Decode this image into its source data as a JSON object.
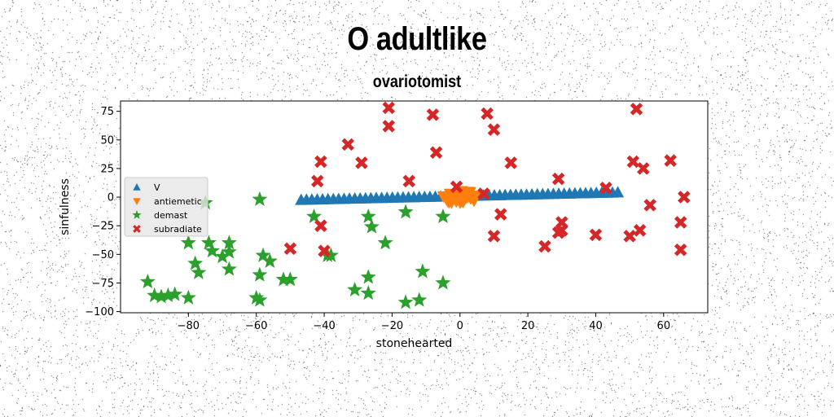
{
  "chart_data": {
    "type": "scatter",
    "title": "O adultlike",
    "subtitle": "ovariotomist",
    "xlabel": "stonehearted",
    "ylabel": "sinfulness",
    "xlim": [
      -100,
      73
    ],
    "ylim": [
      -101,
      84
    ],
    "xticks": [
      -80,
      -60,
      -40,
      -20,
      0,
      20,
      40,
      60
    ],
    "yticks": [
      -100,
      -75,
      -50,
      -25,
      0,
      25,
      50,
      75
    ],
    "grid": false,
    "legend_position": "center-left",
    "series": [
      {
        "name": "V",
        "color": "#1f77b4",
        "marker": "triangle-up",
        "points": "line",
        "x_start": -46.8,
        "y_start": -2.5,
        "x_end": 46.5,
        "y_end": 4.0,
        "count": 60
      },
      {
        "name": "antiemetic",
        "color": "#ff7f0e",
        "marker": "triangle-down",
        "points": "cluster",
        "center": [
          0,
          0
        ],
        "spread": [
          5,
          6
        ],
        "count": 40
      },
      {
        "name": "demast",
        "color": "#2ca02c",
        "marker": "star",
        "points": [
          [
            -92,
            -74
          ],
          [
            -90,
            -86
          ],
          [
            -88,
            -87
          ],
          [
            -86,
            -86
          ],
          [
            -84,
            -85
          ],
          [
            -80,
            -88
          ],
          [
            -80,
            -40
          ],
          [
            -78,
            -58
          ],
          [
            -77,
            -66
          ],
          [
            -74,
            -40
          ],
          [
            -73,
            -47
          ],
          [
            -70,
            -52
          ],
          [
            -68,
            -48
          ],
          [
            -68,
            -40
          ],
          [
            -68,
            -63
          ],
          [
            -75,
            -5
          ],
          [
            -59,
            -2
          ],
          [
            -60,
            -88
          ],
          [
            -59,
            -90
          ],
          [
            -58,
            -51
          ],
          [
            -59,
            -68
          ],
          [
            -56,
            -56
          ],
          [
            -52,
            -72
          ],
          [
            -50,
            -72
          ],
          [
            -43,
            -17
          ],
          [
            -39,
            -51
          ],
          [
            -38,
            -51
          ],
          [
            -31,
            -81
          ],
          [
            -27,
            -84
          ],
          [
            -27,
            -70
          ],
          [
            -27,
            -17
          ],
          [
            -26,
            -26
          ],
          [
            -22,
            -40
          ],
          [
            -16,
            -13
          ],
          [
            -16,
            -92
          ],
          [
            -12,
            -90
          ],
          [
            -11,
            -65
          ],
          [
            -5,
            -17
          ],
          [
            -5,
            -75
          ]
        ]
      },
      {
        "name": "subradiate",
        "color": "#d62728",
        "marker": "x",
        "points": [
          [
            -21,
            78
          ],
          [
            -21,
            62
          ],
          [
            -8,
            72
          ],
          [
            8,
            73
          ],
          [
            10,
            59
          ],
          [
            -33,
            46
          ],
          [
            -29,
            30
          ],
          [
            -7,
            39
          ],
          [
            -41,
            31
          ],
          [
            -42,
            14
          ],
          [
            -15,
            14
          ],
          [
            -1,
            9
          ],
          [
            7,
            3
          ],
          [
            15,
            30
          ],
          [
            29,
            16
          ],
          [
            43,
            8
          ],
          [
            52,
            77
          ],
          [
            51,
            31
          ],
          [
            54,
            25
          ],
          [
            62,
            32
          ],
          [
            66,
            0
          ],
          [
            56,
            -7
          ],
          [
            12,
            -15
          ],
          [
            10,
            -34
          ],
          [
            -41,
            -25
          ],
          [
            -50,
            -45
          ],
          [
            -40,
            -47
          ],
          [
            25,
            -43
          ],
          [
            29,
            -31
          ],
          [
            30,
            -29
          ],
          [
            30,
            -22
          ],
          [
            40,
            -33
          ],
          [
            50,
            -34
          ],
          [
            53,
            -29
          ],
          [
            65,
            -22
          ],
          [
            65,
            -46
          ]
        ]
      }
    ]
  }
}
